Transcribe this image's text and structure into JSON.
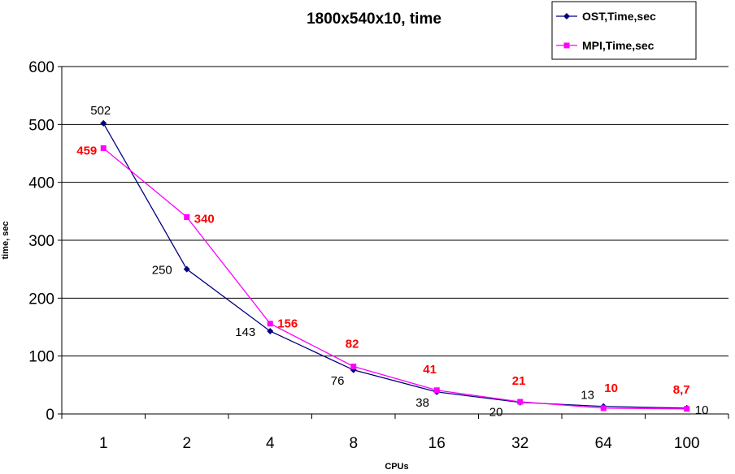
{
  "chart_data": {
    "type": "line",
    "title": "1800x540x10, time",
    "xlabel": "CPUs",
    "ylabel": "time, sec",
    "categories": [
      "1",
      "2",
      "4",
      "8",
      "16",
      "32",
      "64",
      "100"
    ],
    "ylim": [
      0,
      600
    ],
    "yticks": [
      0,
      100,
      200,
      300,
      400,
      500,
      600
    ],
    "grid": "horizontal",
    "legend_position": "top-right",
    "series": [
      {
        "name": "OST,Time,sec",
        "color": "#000080",
        "marker": "diamond",
        "values": [
          502,
          250,
          143,
          76,
          38,
          20,
          13,
          10
        ],
        "labels": [
          "502",
          "250",
          "143",
          "76",
          "38",
          "20",
          "13",
          "10"
        ],
        "label_color": "#000000"
      },
      {
        "name": "MPI,Time,sec",
        "color": "#ff00ff",
        "marker": "square",
        "values": [
          459,
          340,
          156,
          82,
          41,
          21,
          10,
          8.7
        ],
        "labels": [
          "459",
          "340",
          "156",
          "82",
          "41",
          "21",
          "10",
          "8,7"
        ],
        "label_color": "#ff0000"
      }
    ]
  }
}
